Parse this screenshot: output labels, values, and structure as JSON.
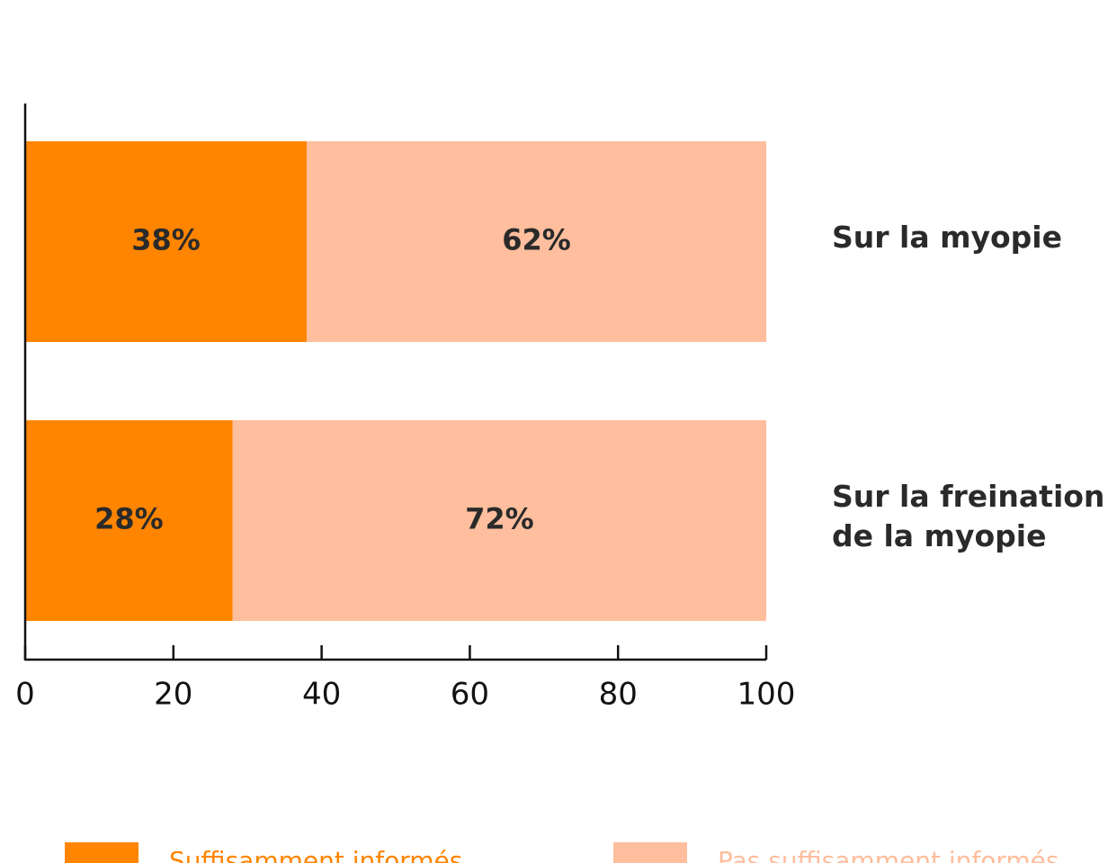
{
  "chart_data": {
    "type": "stacked-barh",
    "categories": [
      "Sur la myopie",
      "Sur la freination de la myopie"
    ],
    "series": [
      {
        "name": "Suffisamment informés",
        "color": "#ff8500",
        "values": [
          38,
          28
        ],
        "value_labels": [
          "38%",
          "28%"
        ]
      },
      {
        "name": "Pas suffisamment informés",
        "color": "#ffbe9d",
        "values": [
          62,
          72
        ],
        "value_labels": [
          "62%",
          "72%"
        ]
      }
    ],
    "xlim": [
      0,
      100
    ],
    "xticks": [
      0,
      20,
      40,
      60,
      80,
      100
    ],
    "legend": "bottom"
  }
}
